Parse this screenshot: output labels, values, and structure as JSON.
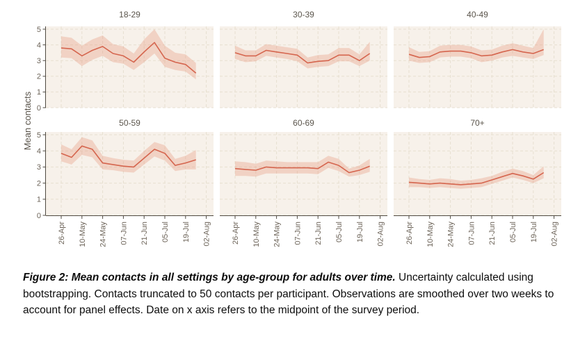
{
  "figure": {
    "y_axis_label": "Mean contacts",
    "caption": {
      "title": "Figure 2: Mean contacts in all settings by age-group for adults over time.",
      "body": " Uncertainty calculated using bootstrapping. Contacts truncated to 50 contacts per participant. Observations are smoothed over two weeks to account for panel effects. Date on x axis refers to the midpoint of the survey period."
    }
  },
  "colors": {
    "panel_background": "#f7f1ea",
    "gridline": "#e7dfd0",
    "ribbon": "rgba(230,140,110,0.30)",
    "line": "#d5654e",
    "axis": "#4f4a42",
    "tick_label": "#6d6459",
    "facet_title": "#5a544b"
  },
  "chart_data": {
    "type": "line",
    "title": "",
    "xlabel": "",
    "ylabel": "Mean contacts",
    "ylim": [
      0,
      5
    ],
    "y_ticks": [
      0,
      1,
      2,
      3,
      4,
      5
    ],
    "x_tick_labels": [
      "26-Apr",
      "10-May",
      "24-May",
      "07-Jun",
      "21-Jun",
      "05-Jul",
      "19-Jul",
      "02-Aug"
    ],
    "x": [
      "26-Apr",
      "03-May",
      "10-May",
      "17-May",
      "24-May",
      "31-May",
      "07-Jun",
      "14-Jun",
      "21-Jun",
      "28-Jun",
      "05-Jul",
      "12-Jul",
      "19-Jul",
      "26-Jul"
    ],
    "grid": "dashed-major-both-axes",
    "legend": "none",
    "facet_layout": {
      "rows": 2,
      "cols": 3
    },
    "facets": [
      {
        "label": "18-29",
        "mean": [
          3.8,
          3.75,
          3.3,
          3.65,
          3.9,
          3.45,
          3.3,
          2.9,
          3.55,
          4.15,
          3.15,
          2.9,
          2.75,
          2.2
        ],
        "upper": [
          4.55,
          4.45,
          3.95,
          4.35,
          4.6,
          4.05,
          3.9,
          3.45,
          4.35,
          5.0,
          3.95,
          3.5,
          3.4,
          2.85
        ],
        "lower": [
          3.2,
          3.15,
          2.65,
          3.05,
          3.3,
          2.9,
          2.8,
          2.4,
          2.9,
          3.45,
          2.6,
          2.4,
          2.3,
          1.8
        ]
      },
      {
        "label": "30-39",
        "mean": [
          3.5,
          3.3,
          3.3,
          3.65,
          3.55,
          3.45,
          3.35,
          2.85,
          2.95,
          3.0,
          3.35,
          3.35,
          3.0,
          3.45
        ],
        "upper": [
          3.95,
          3.65,
          3.65,
          4.05,
          3.95,
          3.85,
          3.75,
          3.2,
          3.35,
          3.4,
          3.8,
          3.8,
          3.4,
          4.2
        ],
        "lower": [
          3.1,
          2.9,
          2.95,
          3.3,
          3.2,
          3.1,
          2.95,
          2.5,
          2.6,
          2.65,
          2.95,
          2.95,
          2.65,
          3.0
        ]
      },
      {
        "label": "40-49",
        "mean": [
          3.4,
          3.2,
          3.25,
          3.55,
          3.6,
          3.6,
          3.5,
          3.3,
          3.35,
          3.55,
          3.7,
          3.55,
          3.45,
          3.7
        ],
        "upper": [
          3.85,
          3.55,
          3.6,
          3.95,
          4.0,
          4.0,
          3.9,
          3.65,
          3.7,
          3.95,
          4.1,
          3.95,
          3.8,
          5.0
        ],
        "lower": [
          3.0,
          2.85,
          2.9,
          3.2,
          3.25,
          3.25,
          3.15,
          2.9,
          3.0,
          3.2,
          3.3,
          3.2,
          3.1,
          3.35
        ]
      },
      {
        "label": "50-59",
        "mean": [
          3.85,
          3.6,
          4.3,
          4.1,
          3.25,
          3.15,
          3.05,
          3.0,
          3.55,
          4.1,
          3.85,
          3.1,
          3.25,
          3.45
        ],
        "upper": [
          4.4,
          4.1,
          4.85,
          4.65,
          3.7,
          3.55,
          3.45,
          3.4,
          4.0,
          4.55,
          4.35,
          3.5,
          3.7,
          4.05
        ],
        "lower": [
          3.35,
          3.15,
          3.75,
          3.6,
          2.85,
          2.8,
          2.7,
          2.65,
          3.15,
          3.65,
          3.4,
          2.75,
          2.85,
          2.85
        ]
      },
      {
        "label": "60-69",
        "mean": [
          2.9,
          2.85,
          2.8,
          3.0,
          2.95,
          2.95,
          2.95,
          2.95,
          2.9,
          3.3,
          3.1,
          2.65,
          2.8,
          3.05
        ],
        "upper": [
          3.35,
          3.3,
          3.2,
          3.4,
          3.35,
          3.3,
          3.3,
          3.3,
          3.3,
          3.7,
          3.5,
          2.9,
          3.1,
          3.5
        ],
        "lower": [
          2.45,
          2.45,
          2.4,
          2.6,
          2.6,
          2.6,
          2.6,
          2.6,
          2.55,
          2.95,
          2.75,
          2.4,
          2.5,
          2.7
        ]
      },
      {
        "label": "70+",
        "mean": [
          2.05,
          2.0,
          1.95,
          2.0,
          1.95,
          1.9,
          1.95,
          2.0,
          2.2,
          2.4,
          2.6,
          2.45,
          2.25,
          2.65
        ],
        "upper": [
          2.35,
          2.25,
          2.2,
          2.3,
          2.25,
          2.15,
          2.2,
          2.3,
          2.45,
          2.7,
          2.9,
          2.75,
          2.5,
          3.05
        ],
        "lower": [
          1.75,
          1.75,
          1.7,
          1.75,
          1.7,
          1.65,
          1.7,
          1.75,
          1.95,
          2.15,
          2.35,
          2.2,
          2.0,
          2.3
        ]
      }
    ]
  }
}
